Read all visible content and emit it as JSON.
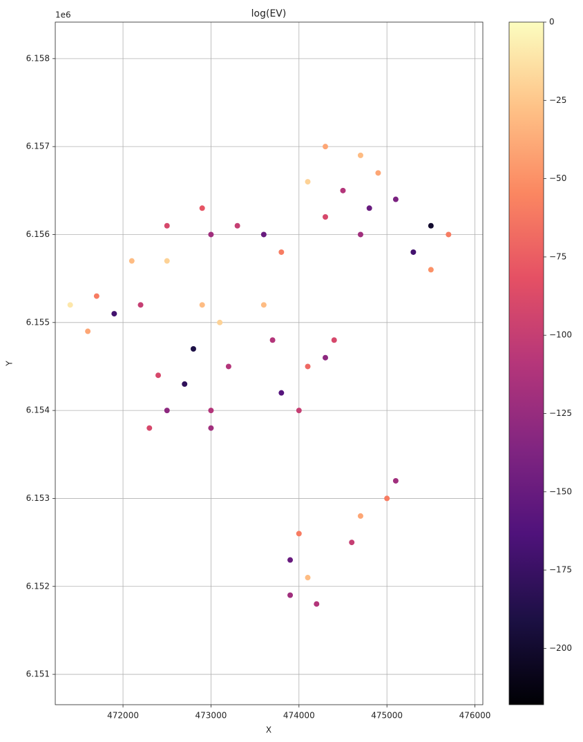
{
  "chart_data": {
    "type": "scatter",
    "title": "log(EV)",
    "x_label": "X",
    "y_label": "Y",
    "y_offset_label": "1e6",
    "x": [
      474300,
      474700,
      474100,
      474500,
      474800,
      474300,
      474700,
      475100,
      475500,
      475700,
      475300,
      475500,
      474900,
      472900,
      473000,
      473300,
      472500,
      473600,
      472100,
      472500,
      473800,
      471700,
      471900,
      471600,
      472200,
      471400,
      472900,
      473100,
      472800,
      473200,
      472400,
      472700,
      472500,
      473000,
      472300,
      473000,
      473600,
      473700,
      473800,
      474000,
      474300,
      474400,
      474100,
      474000,
      473900,
      474100,
      473900,
      474200,
      474600,
      474700,
      475000,
      475100
    ],
    "y": [
      6157000,
      6156900,
      6156600,
      6156500,
      6156300,
      6156200,
      6156000,
      6156400,
      6156100,
      6156000,
      6155800,
      6155600,
      6156700,
      6156300,
      6156000,
      6156100,
      6156100,
      6156000,
      6155700,
      6155700,
      6155800,
      6155300,
      6155100,
      6154900,
      6155200,
      6155200,
      6155200,
      6155000,
      6154700,
      6154500,
      6154400,
      6154300,
      6154000,
      6154000,
      6153800,
      6153800,
      6155200,
      6154800,
      6154200,
      6154000,
      6154600,
      6154800,
      6154500,
      6152600,
      6152300,
      6152100,
      6151900,
      6151800,
      6152500,
      6152800,
      6153000,
      6153200
    ],
    "color_values": [
      -40,
      -30,
      -20,
      -110,
      -150,
      -90,
      -120,
      -140,
      -200,
      -60,
      -170,
      -50,
      -40,
      -80,
      -120,
      -100,
      -90,
      -150,
      -30,
      -20,
      -60,
      -60,
      -170,
      -40,
      -100,
      -10,
      -30,
      -20,
      -190,
      -110,
      -90,
      -180,
      -130,
      -110,
      -90,
      -120,
      -30,
      -110,
      -160,
      -100,
      -130,
      -90,
      -70,
      -60,
      -150,
      -30,
      -120,
      -110,
      -100,
      -40,
      -60,
      -120
    ],
    "colormap": "magma",
    "clim": [
      -218,
      0
    ],
    "cticks": [
      0,
      {
        "value": -25,
        "label": "−25"
      },
      {
        "value": -50,
        "label": "−50"
      },
      {
        "value": -75,
        "label": "−75"
      },
      {
        "value": -100,
        "label": "−100"
      },
      {
        "value": -125,
        "label": "−125"
      },
      {
        "value": -150,
        "label": "−150"
      },
      {
        "value": -175,
        "label": "−175"
      },
      {
        "value": -200,
        "label": "−200"
      }
    ],
    "xlim": [
      471230,
      476090
    ],
    "xticks": [
      472000,
      473000,
      474000,
      475000,
      476000
    ],
    "ylim": [
      6150655,
      6158415
    ],
    "yticks": [
      {
        "value": 6151000,
        "label": "6.151"
      },
      {
        "value": 6152000,
        "label": "6.152"
      },
      {
        "value": 6153000,
        "label": "6.153"
      },
      {
        "value": 6154000,
        "label": "6.154"
      },
      {
        "value": 6155000,
        "label": "6.155"
      },
      {
        "value": 6156000,
        "label": "6.156"
      },
      {
        "value": 6157000,
        "label": "6.157"
      },
      {
        "value": 6158000,
        "label": "6.158"
      }
    ],
    "grid": true
  }
}
